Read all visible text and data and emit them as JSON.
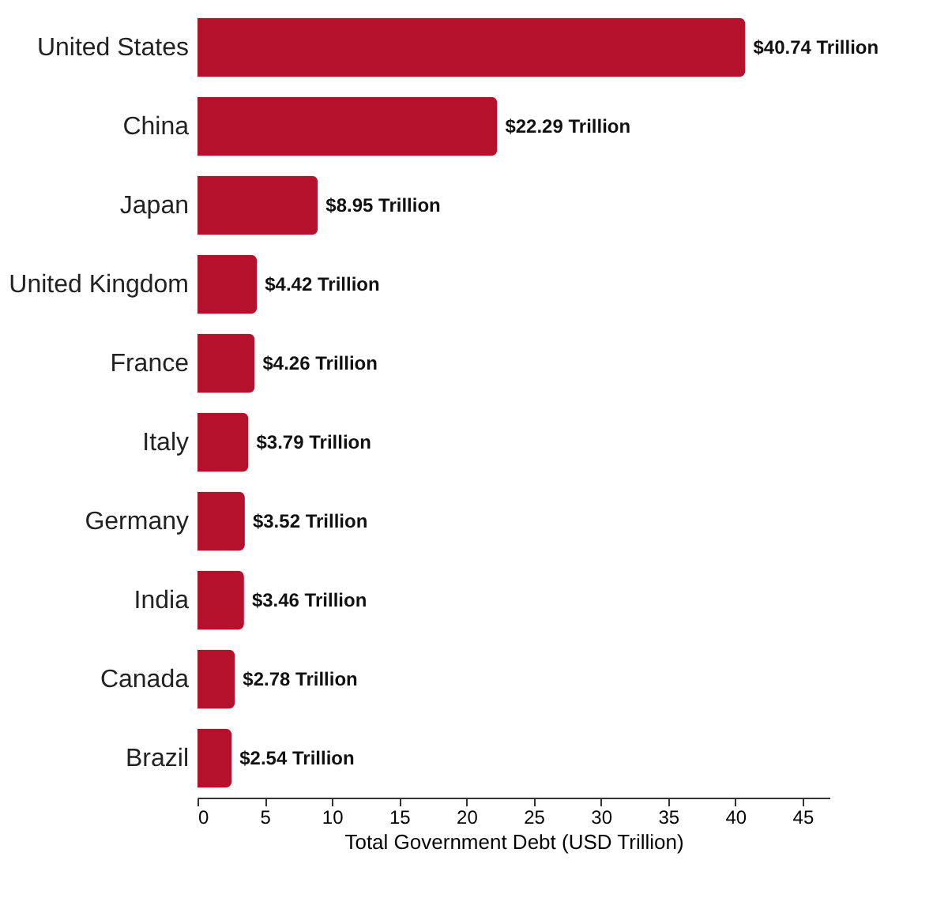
{
  "chart_data": {
    "type": "bar",
    "orientation": "horizontal",
    "xlabel": "Total Government Debt (USD Trillion)",
    "categories": [
      "United States",
      "China",
      "Japan",
      "United Kingdom",
      "France",
      "Italy",
      "Germany",
      "India",
      "Canada",
      "Brazil"
    ],
    "values": [
      40.74,
      22.29,
      8.95,
      4.42,
      4.26,
      3.79,
      3.52,
      3.46,
      2.78,
      2.54
    ],
    "value_labels": [
      "$40.74 Trillion",
      "$22.29 Trillion",
      "$8.95 Trillion",
      "$4.42 Trillion",
      "$4.26 Trillion",
      "$3.79 Trillion",
      "$3.52 Trillion",
      "$3.46 Trillion",
      "$2.78 Trillion",
      "$2.54 Trillion"
    ],
    "color": "#b5102c",
    "xlim": [
      0,
      47
    ],
    "xticks": [
      0,
      5,
      10,
      15,
      20,
      25,
      30,
      35,
      40,
      45
    ],
    "grid": false
  }
}
